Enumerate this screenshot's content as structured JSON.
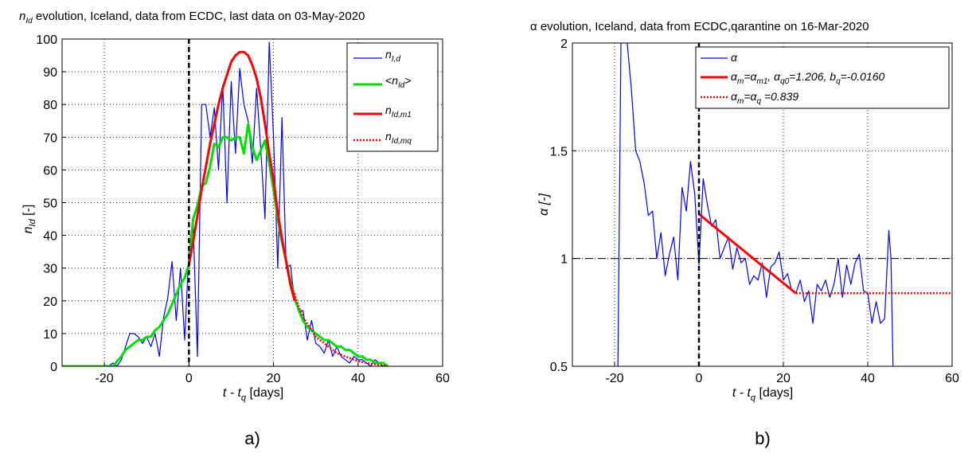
{
  "colors": {
    "blue": "#0000ff",
    "green": "#00e000",
    "red": "#ff0000",
    "black": "#000000"
  },
  "panel_a": {
    "title_sym": "n",
    "title_sub": "Id",
    "title_rest": " evolution, Iceland, data from ECDC, last data on 03-May-2020",
    "ylabel_sym": "n",
    "ylabel_sub": "Id",
    "ylabel_rest": " [-]",
    "xlabel_main": "t - t",
    "xlabel_sub": "q",
    "xlabel_rest": " [days]",
    "caption": "a)",
    "legend": [
      {
        "sym": "n",
        "sub": "I,d",
        "pre": "",
        "post": ""
      },
      {
        "sym": "n",
        "sub": "Id",
        "pre": "<",
        "post": ">"
      },
      {
        "sym": "n",
        "sub": "Id,m1",
        "pre": "",
        "post": ""
      },
      {
        "sym": "n",
        "sub": "Id,mq",
        "pre": "",
        "post": ""
      }
    ]
  },
  "panel_b": {
    "title": "α evolution, Iceland, data from ECDC,qarantine on 16-Mar-2020",
    "ylabel": "α [-]",
    "xlabel_main": "t - t",
    "xlabel_sub": "q",
    "xlabel_rest": " [days]",
    "caption": "b)",
    "legend": [
      {
        "text": "α"
      },
      {
        "text": "α_m=α_m1, α_q0=1.206, b_q=-0.0160",
        "a": "α",
        "am": "m",
        "b": "=α",
        "bm": "m1",
        "c": ", α",
        "cm": "q0",
        "d": "=1.206, b",
        "dm": "q",
        "e": "=-0.0160"
      },
      {
        "text": "α_m=α_q =0.839",
        "a": "α",
        "am": "m",
        "b": "=α",
        "bm": "q",
        "c": " =0.839"
      }
    ]
  },
  "chart_data": [
    {
      "type": "line",
      "xlim": [
        -30,
        60
      ],
      "ylim": [
        0,
        100
      ],
      "xticks": [
        -20,
        0,
        20,
        40,
        60
      ],
      "yticks": [
        0,
        10,
        20,
        30,
        40,
        50,
        60,
        70,
        80,
        90,
        100
      ],
      "grid": true,
      "legend_position": "top-right",
      "vline_x": 0,
      "series": [
        {
          "name": "n_I,d",
          "color": "#0000ff",
          "style": "solid",
          "x": [
            -30,
            -29,
            -28,
            -27,
            -26,
            -25,
            -24,
            -23,
            -22,
            -21,
            -20,
            -19,
            -18,
            -17,
            -16,
            -15,
            -14,
            -13,
            -12,
            -11,
            -10,
            -9,
            -8,
            -7,
            -6,
            -5,
            -4,
            -3,
            -2,
            -1,
            0,
            1,
            2,
            3,
            4,
            5,
            6,
            7,
            8,
            9,
            10,
            11,
            12,
            13,
            14,
            15,
            16,
            17,
            18,
            19,
            20,
            21,
            22,
            23,
            24,
            25,
            26,
            27,
            28,
            29,
            30,
            31,
            32,
            33,
            34,
            35,
            36,
            37,
            38,
            39,
            40,
            41,
            42,
            43,
            44,
            45,
            46,
            47
          ],
          "y": [
            0,
            0,
            0,
            0,
            0,
            0,
            0,
            0,
            0,
            0,
            0,
            0,
            1,
            0,
            2,
            6,
            10,
            10,
            9,
            7,
            9,
            6,
            10,
            3,
            15,
            21,
            32,
            14,
            30,
            8,
            35,
            44,
            3,
            80,
            80,
            70,
            79,
            60,
            86,
            50,
            87,
            65,
            91,
            80,
            75,
            62,
            85,
            66,
            45,
            99,
            70,
            30,
            76,
            30,
            31,
            20,
            17,
            17,
            8,
            14,
            7,
            6,
            4,
            8,
            3,
            6,
            3,
            2,
            1,
            3,
            2,
            2,
            1,
            0,
            2,
            1,
            0,
            0
          ]
        },
        {
          "name": "<n_Id>",
          "color": "#00e000",
          "style": "solid",
          "x": [
            -30,
            -20,
            -18,
            -16,
            -15,
            -14,
            -13,
            -12,
            -11,
            -10,
            -9,
            -8,
            -7,
            -6,
            -5,
            -4,
            -3,
            -2,
            -1,
            0,
            1,
            2,
            3,
            4,
            5,
            6,
            7,
            8,
            9,
            10,
            11,
            12,
            13,
            14,
            15,
            16,
            17,
            18,
            19,
            20,
            21,
            22,
            23,
            24,
            25,
            26,
            27,
            28,
            29,
            30,
            31,
            32,
            33,
            34,
            35,
            36,
            37,
            38,
            39,
            40,
            41,
            42,
            43,
            44,
            45,
            46,
            47
          ],
          "y": [
            0,
            0,
            0,
            3,
            5,
            6,
            7,
            8,
            8,
            9,
            9,
            11,
            12,
            14,
            16,
            19,
            22,
            25,
            27,
            31,
            45,
            49,
            55,
            56,
            61,
            68,
            67,
            70,
            70,
            69,
            70,
            70,
            65,
            74,
            67,
            63,
            66,
            69,
            62,
            54,
            45,
            38,
            32,
            26,
            21,
            17,
            14,
            12,
            11,
            10,
            9,
            8,
            8,
            7,
            6,
            6,
            5,
            5,
            4,
            3,
            3,
            2,
            2,
            1,
            1,
            1,
            0
          ]
        },
        {
          "name": "n_Id,m1",
          "color": "#ff0000",
          "style": "solid",
          "x": [
            0,
            1,
            2,
            3,
            4,
            5,
            6,
            7,
            8,
            9,
            10,
            11,
            12,
            13,
            14,
            15,
            16,
            17,
            18,
            19,
            20,
            21,
            22,
            23,
            24,
            25
          ],
          "y": [
            31,
            38,
            46,
            54,
            61,
            68,
            74,
            80,
            85,
            89,
            93,
            95,
            96,
            96,
            95,
            92,
            88,
            82,
            74,
            65,
            57,
            47,
            39,
            32,
            25,
            20
          ]
        },
        {
          "name": "n_Id,mq",
          "color": "#ff0000",
          "style": "dotted",
          "x": [
            24,
            25,
            26,
            27,
            28,
            29,
            30,
            31,
            32,
            33,
            34,
            35,
            36,
            37,
            38,
            39,
            40,
            41,
            42,
            43,
            44,
            45,
            46,
            47
          ],
          "y": [
            25,
            22,
            18,
            15,
            13,
            11,
            9,
            8,
            7,
            6,
            5,
            4,
            3.5,
            3,
            2.5,
            2,
            1.6,
            1.3,
            1,
            0.8,
            0.6,
            0.4,
            0.2,
            0.1
          ]
        }
      ]
    },
    {
      "type": "line",
      "xlim": [
        -30,
        60
      ],
      "ylim": [
        0.5,
        2
      ],
      "xticks": [
        -20,
        0,
        20,
        40,
        60
      ],
      "yticks": [
        0.5,
        1,
        1.5,
        2
      ],
      "grid": true,
      "legend_position": "top-right",
      "vline_x": 0,
      "hline_y": 1,
      "series": [
        {
          "name": "α",
          "color": "#0000ff",
          "style": "solid",
          "x": [
            -19.2,
            -18.5,
            -17,
            -16,
            -15,
            -14,
            -13,
            -12,
            -11,
            -10,
            -9,
            -8,
            -7,
            -6,
            -5,
            -4,
            -3,
            -2,
            -1,
            0,
            1,
            2,
            3,
            4,
            5,
            6,
            7,
            8,
            9,
            10,
            11,
            12,
            13,
            14,
            15,
            16,
            17,
            18,
            19,
            20,
            21,
            22,
            23,
            24,
            25,
            26,
            27,
            28,
            29,
            30,
            31,
            32,
            33,
            34,
            35,
            36,
            37,
            38,
            39,
            40,
            41,
            42,
            43,
            44,
            45,
            45.5,
            46
          ],
          "y": [
            0.5,
            2.0,
            2.0,
            1.78,
            1.5,
            1.45,
            1.35,
            1.2,
            1.22,
            1.0,
            1.12,
            0.92,
            1.02,
            1.1,
            0.9,
            1.33,
            1.22,
            1.45,
            1.3,
            0.97,
            1.37,
            1.25,
            1.15,
            1.18,
            1.0,
            1.05,
            1.1,
            0.95,
            1.05,
            0.98,
            1.0,
            0.88,
            0.92,
            0.9,
            0.98,
            0.82,
            0.96,
            0.98,
            1.03,
            0.9,
            0.93,
            0.85,
            0.84,
            0.9,
            0.8,
            0.85,
            0.7,
            0.88,
            0.85,
            0.9,
            0.82,
            0.88,
            1.0,
            0.82,
            0.97,
            0.88,
            0.98,
            1.02,
            0.85,
            0.84,
            0.7,
            0.8,
            0.7,
            0.72,
            1.13,
            1.0,
            0.5
          ]
        },
        {
          "name": "α_m=α_m1, α_q0=1.206, b_q=-0.0160",
          "color": "#ff0000",
          "style": "solid",
          "x": [
            0,
            23
          ],
          "y": [
            1.206,
            0.838
          ]
        },
        {
          "name": "α_m=α_q =0.839",
          "color": "#ff0000",
          "style": "dotted",
          "x": [
            23,
            60
          ],
          "y": [
            0.839,
            0.839
          ]
        }
      ]
    }
  ]
}
